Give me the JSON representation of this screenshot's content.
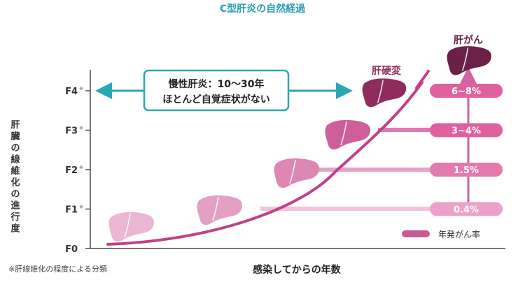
{
  "title": "C型肝炎の自然経過",
  "y_axis_label": "肝臓の線維化の進行度",
  "x_axis_label": "感染してからの年数",
  "footnote": "※肝線維化の程度による分類",
  "stage_mark": "※",
  "stages": [
    "F0",
    "F1",
    "F2",
    "F3",
    "F4"
  ],
  "starred_stages": [
    1,
    2,
    3,
    4
  ],
  "chronic_box": {
    "line1": "慢性肝炎：10～30年",
    "line2": "ほとんど自覚症状がない"
  },
  "cirrhosis_label": "肝硬変",
  "cancer_label": "肝がん",
  "rates": [
    {
      "stage": 4,
      "label": "6~8%",
      "color": "#e0609e"
    },
    {
      "stage": 3,
      "label": "3~4%",
      "color": "#e0609e"
    },
    {
      "stage": 2,
      "label": "1.5%",
      "color": "#e27aae"
    },
    {
      "stage": 1,
      "label": "0.4%",
      "color": "#eca2c8"
    }
  ],
  "legend_label": "年発がん率",
  "colors": {
    "title": "#2aa0b8",
    "teal": "#2ba7b4",
    "curve": "#c43f86",
    "axis": "#4a4a4a",
    "text": "#333333",
    "liver_f0": "#eab6d3",
    "liver_f1": "#e3a0c4",
    "liver_f2": "#dd87b4",
    "liver_f3": "#cf5f9b",
    "liver_f4": "#8e2c5b",
    "liver_cancer": "#6b2147",
    "legend": "#c85a98"
  }
}
